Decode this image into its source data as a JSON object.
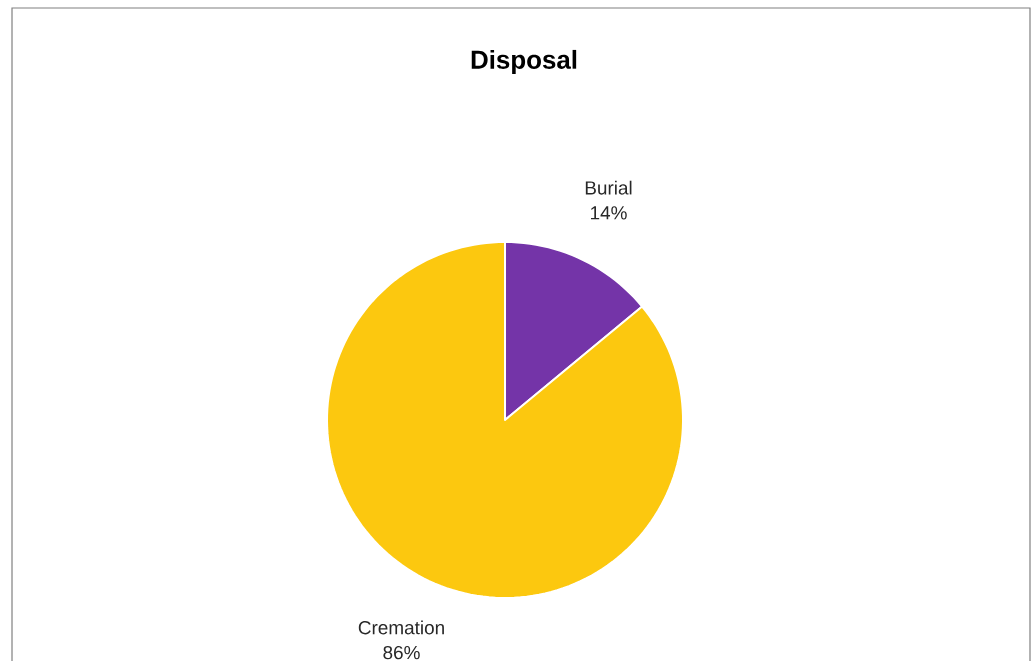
{
  "chart_data": {
    "type": "pie",
    "title": "Disposal",
    "categories": [
      "Burial",
      "Cremation"
    ],
    "values": [
      14,
      86
    ],
    "colors": [
      "#7434a8",
      "#fcc80f"
    ],
    "value_labels": [
      "14%",
      "86%"
    ],
    "legend": false
  }
}
